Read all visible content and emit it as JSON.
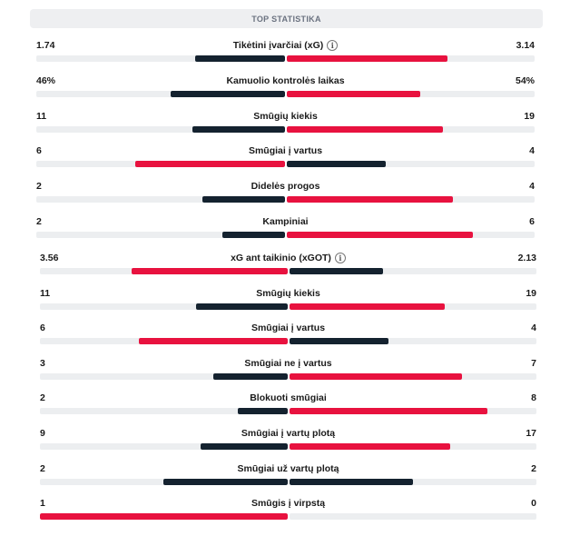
{
  "header": {
    "title": "TOP STATISTIKA"
  },
  "colors": {
    "winner": "#e8123f",
    "loser": "#14222f"
  },
  "stats": [
    {
      "name": "Tikėtini įvarčiai (xG)",
      "home": "1.74",
      "away": "3.14",
      "home_share": 0.36,
      "away_share": 0.65,
      "info": true,
      "home_lead": false
    },
    {
      "name": "Kamuolio kontrolės laikas",
      "home": "46%",
      "away": "54%",
      "home_share": 0.46,
      "away_share": 0.54,
      "info": false,
      "home_lead": false
    },
    {
      "name": "Smūgių kiekis",
      "home": "11",
      "away": "19",
      "home_share": 0.37,
      "away_share": 0.63,
      "info": false,
      "home_lead": false
    },
    {
      "name": "Smūgiai į vartus",
      "home": "6",
      "away": "4",
      "home_share": 0.6,
      "away_share": 0.4,
      "info": false,
      "home_lead": true
    },
    {
      "name": "Didelės progos",
      "home": "2",
      "away": "4",
      "home_share": 0.33,
      "away_share": 0.67,
      "info": false,
      "home_lead": false
    },
    {
      "name": "Kampiniai",
      "home": "2",
      "away": "6",
      "home_share": 0.25,
      "away_share": 0.75,
      "info": false,
      "home_lead": false
    },
    {
      "name": "xG ant taikinio (xGOT)",
      "home": "3.56",
      "away": "2.13",
      "home_share": 0.63,
      "away_share": 0.38,
      "info": true,
      "home_lead": true
    },
    {
      "name": "Smūgių kiekis",
      "home": "11",
      "away": "19",
      "home_share": 0.37,
      "away_share": 0.63,
      "info": false,
      "home_lead": false
    },
    {
      "name": "Smūgiai į vartus",
      "home": "6",
      "away": "4",
      "home_share": 0.6,
      "away_share": 0.4,
      "info": false,
      "home_lead": true
    },
    {
      "name": "Smūgiai ne į vartus",
      "home": "3",
      "away": "7",
      "home_share": 0.3,
      "away_share": 0.7,
      "info": false,
      "home_lead": false
    },
    {
      "name": "Blokuoti smūgiai",
      "home": "2",
      "away": "8",
      "home_share": 0.2,
      "away_share": 0.8,
      "info": false,
      "home_lead": false
    },
    {
      "name": "Smūgiai į vartų plotą",
      "home": "9",
      "away": "17",
      "home_share": 0.35,
      "away_share": 0.65,
      "info": false,
      "home_lead": false
    },
    {
      "name": "Smūgiai už vartų plotą",
      "home": "2",
      "away": "2",
      "home_share": 0.5,
      "away_share": 0.5,
      "info": false,
      "home_lead": false
    },
    {
      "name": "Smūgis į virpstą",
      "home": "1",
      "away": "0",
      "home_share": 1.0,
      "away_share": 0.0,
      "info": false,
      "home_lead": true
    }
  ]
}
